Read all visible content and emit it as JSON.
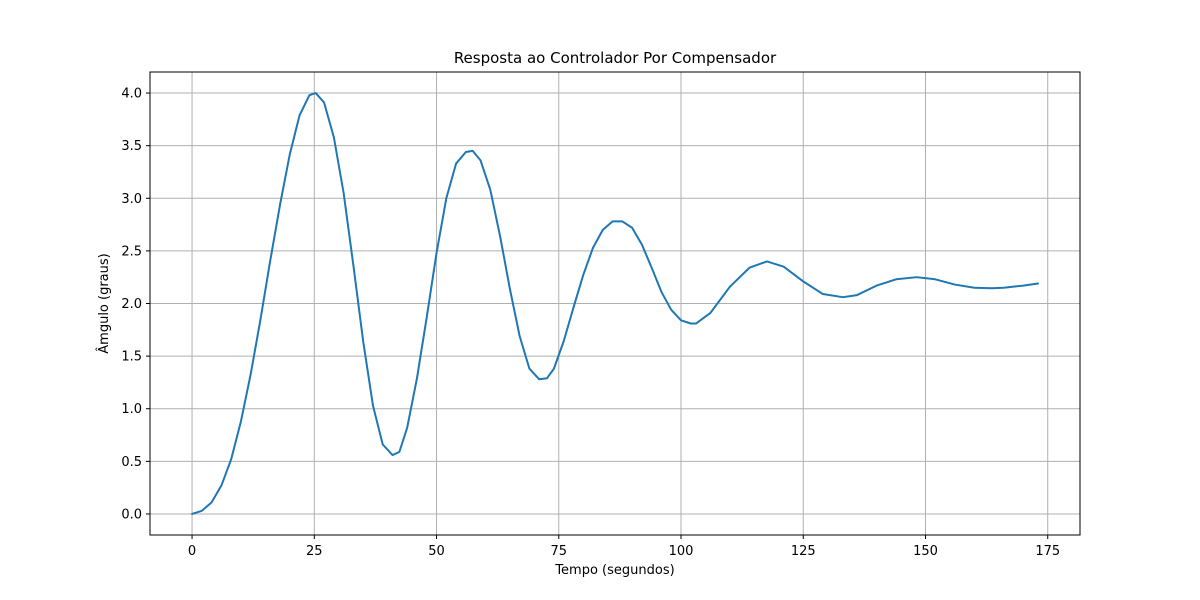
{
  "chart_data": {
    "type": "line",
    "title": "Resposta ao Controlador Por Compensador",
    "xlabel": "Tempo (segundos)",
    "ylabel": "Âmgulo (graus)",
    "xlim": [
      -8.6,
      181.6
    ],
    "ylim": [
      -0.2,
      4.2
    ],
    "xticks": [
      0,
      25,
      50,
      75,
      100,
      125,
      150,
      175
    ],
    "yticks": [
      0.0,
      0.5,
      1.0,
      1.5,
      2.0,
      2.5,
      3.0,
      3.5,
      4.0
    ],
    "xtick_labels": [
      "0",
      "25",
      "50",
      "75",
      "100",
      "125",
      "150",
      "175"
    ],
    "ytick_labels": [
      "0.0",
      "0.5",
      "1.0",
      "1.5",
      "2.0",
      "2.5",
      "3.0",
      "3.5",
      "4.0"
    ],
    "grid": true,
    "series": [
      {
        "color": "#1f77b4",
        "x": [
          0,
          2,
          4,
          6,
          8,
          10,
          12,
          14,
          16,
          18,
          20,
          22,
          24,
          25.3,
          27,
          29,
          31,
          33,
          35,
          37,
          39,
          41,
          42.4,
          44,
          46,
          48,
          50,
          52,
          54,
          56,
          57.4,
          59,
          61,
          63,
          65,
          67,
          69,
          71,
          72.6,
          74,
          76,
          78,
          80,
          82,
          84,
          86,
          88,
          90,
          92,
          94,
          96,
          98,
          100,
          102,
          103.1,
          106,
          110,
          114,
          117.6,
          121,
          125,
          129,
          133.1,
          136,
          140,
          144,
          148.2,
          152,
          156,
          160,
          163.5,
          166,
          170,
          173
        ],
        "y": [
          0.0,
          0.03,
          0.11,
          0.27,
          0.52,
          0.88,
          1.33,
          1.85,
          2.41,
          2.94,
          3.42,
          3.79,
          3.98,
          4.0,
          3.91,
          3.58,
          3.05,
          2.36,
          1.64,
          1.03,
          0.66,
          0.56,
          0.59,
          0.82,
          1.29,
          1.87,
          2.48,
          3.0,
          3.33,
          3.44,
          3.45,
          3.36,
          3.08,
          2.64,
          2.14,
          1.69,
          1.38,
          1.28,
          1.29,
          1.38,
          1.64,
          1.96,
          2.27,
          2.53,
          2.7,
          2.78,
          2.78,
          2.72,
          2.56,
          2.34,
          2.11,
          1.94,
          1.84,
          1.81,
          1.81,
          1.91,
          2.16,
          2.34,
          2.4,
          2.35,
          2.21,
          2.09,
          2.06,
          2.08,
          2.17,
          2.23,
          2.25,
          2.23,
          2.18,
          2.15,
          2.145,
          2.15,
          2.17,
          2.19
        ]
      }
    ]
  }
}
